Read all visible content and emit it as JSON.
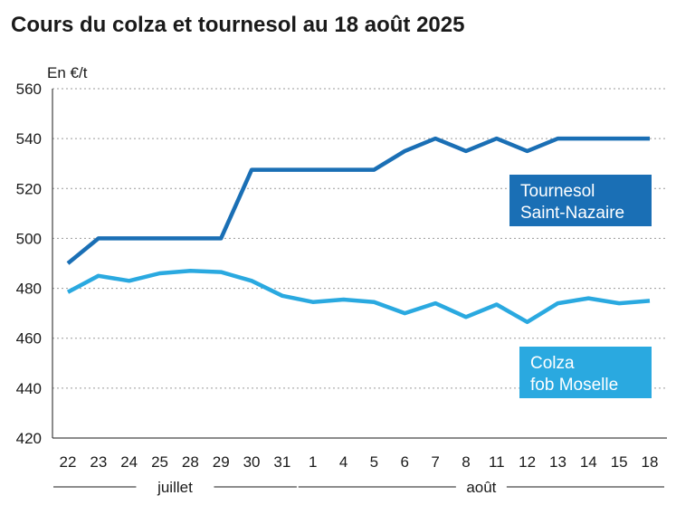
{
  "chart_data": {
    "type": "line",
    "title": "Cours du colza et tournesol au 18 août 2025",
    "ylabel": "En €/t",
    "xlabel": "",
    "ylim": [
      420,
      560
    ],
    "yticks": [
      420,
      440,
      460,
      480,
      500,
      520,
      540,
      560
    ],
    "grid": "horizontal dotted",
    "categories": [
      "22",
      "23",
      "24",
      "25",
      "28",
      "29",
      "30",
      "31",
      "1",
      "4",
      "5",
      "6",
      "7",
      "8",
      "11",
      "12",
      "13",
      "14",
      "15",
      "18"
    ],
    "months": [
      {
        "label": "juillet",
        "from": 0,
        "to": 7
      },
      {
        "label": "août",
        "from": 8,
        "to": 19
      }
    ],
    "series": [
      {
        "name": "Tournesol Saint-Nazaire",
        "label_lines": [
          "Tournesol",
          "Saint-Nazaire"
        ],
        "color": "#1a6fb5",
        "values": [
          490,
          500,
          500,
          500,
          500,
          500,
          527.5,
          527.5,
          527.5,
          527.5,
          527.5,
          535,
          540,
          535,
          540,
          535,
          540,
          540,
          540,
          540
        ]
      },
      {
        "name": "Colza fob Moselle",
        "label_lines": [
          "Colza",
          "fob Moselle"
        ],
        "color": "#2aa9e0",
        "values": [
          478.5,
          485,
          483,
          486,
          487,
          486.5,
          483,
          477,
          474.5,
          475.5,
          474.5,
          470,
          474,
          468.5,
          473.5,
          466.5,
          474,
          476,
          474,
          475
        ]
      }
    ]
  }
}
